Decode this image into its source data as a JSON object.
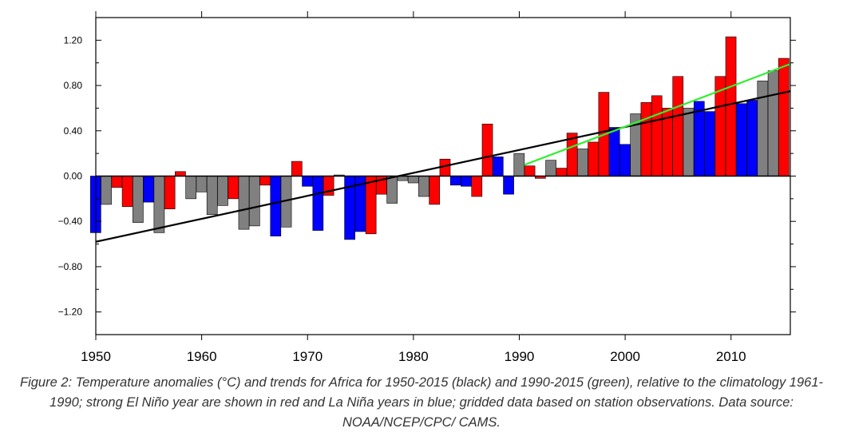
{
  "caption": "Figure 2: Temperature anomalies (°C) and trends for Africa for 1950-2015 (black) and 1990-2015 (green), relative to the climatology 1961-1990; strong El Niño year are shown in red and La Niña years in blue; gridded data based on station observations. Data source: NOAA/NCEP/CPC/ CAMS.",
  "colors": {
    "el_nino": "#ff0000",
    "la_nina": "#0000ff",
    "neutral": "#808080",
    "trend_1950_2015": "#000000",
    "trend_1990_2015": "#33ee33"
  },
  "chart_data": {
    "type": "bar",
    "title": "",
    "xlabel": "",
    "ylabel": "",
    "xlim": [
      1950,
      2015.6
    ],
    "ylim": [
      -1.4,
      1.4
    ],
    "y_ticks": [
      -1.2,
      -0.8,
      -0.4,
      0.0,
      0.4,
      0.8,
      1.2
    ],
    "y_tick_labels": [
      "−1.20",
      "−0.80",
      "−0.40",
      "0.00",
      "0.40",
      "0.80",
      "1.20"
    ],
    "x_ticks": [
      1950,
      1960,
      1970,
      1980,
      1990,
      2000,
      2010
    ],
    "x_tick_labels": [
      "1950",
      "1960",
      "1970",
      "1980",
      "1990",
      "2000",
      "2010"
    ],
    "grid": false,
    "legend": "none",
    "categories": [
      1950,
      1951,
      1952,
      1953,
      1954,
      1955,
      1956,
      1957,
      1958,
      1959,
      1960,
      1961,
      1962,
      1963,
      1964,
      1965,
      1966,
      1967,
      1968,
      1969,
      1970,
      1971,
      1972,
      1973,
      1974,
      1975,
      1976,
      1977,
      1978,
      1979,
      1980,
      1981,
      1982,
      1983,
      1984,
      1985,
      1986,
      1987,
      1988,
      1989,
      1990,
      1991,
      1992,
      1993,
      1994,
      1995,
      1996,
      1997,
      1998,
      1999,
      2000,
      2001,
      2002,
      2003,
      2004,
      2005,
      2006,
      2007,
      2008,
      2009,
      2010,
      2011,
      2012,
      2013,
      2014,
      2015
    ],
    "values": [
      -0.5,
      -0.25,
      -0.1,
      -0.27,
      -0.41,
      -0.23,
      -0.5,
      -0.29,
      0.04,
      -0.2,
      -0.14,
      -0.34,
      -0.26,
      -0.2,
      -0.47,
      -0.44,
      -0.08,
      -0.53,
      -0.45,
      0.13,
      -0.09,
      -0.48,
      -0.17,
      0.01,
      -0.56,
      -0.49,
      -0.51,
      -0.16,
      -0.24,
      -0.04,
      -0.06,
      -0.18,
      -0.25,
      0.15,
      -0.08,
      -0.09,
      -0.18,
      0.46,
      0.17,
      -0.16,
      0.2,
      0.09,
      -0.02,
      0.14,
      0.07,
      0.38,
      0.24,
      0.3,
      0.74,
      0.43,
      0.28,
      0.55,
      0.65,
      0.71,
      0.6,
      0.88,
      0.6,
      0.66,
      0.57,
      0.88,
      1.23,
      0.64,
      0.67,
      0.84,
      0.93,
      1.04
    ],
    "category_types": [
      "nina",
      "neutral",
      "nino",
      "nino",
      "neutral",
      "nina",
      "neutral",
      "nino",
      "nino",
      "neutral",
      "neutral",
      "neutral",
      "neutral",
      "nino",
      "neutral",
      "neutral",
      "nino",
      "nina",
      "neutral",
      "nino",
      "nina",
      "nina",
      "nino",
      "neutral",
      "nina",
      "nina",
      "nino",
      "nino",
      "neutral",
      "neutral",
      "neutral",
      "neutral",
      "nino",
      "nino",
      "nina",
      "nina",
      "nino",
      "nino",
      "nina",
      "nina",
      "neutral",
      "nino",
      "nino",
      "neutral",
      "nino",
      "nino",
      "neutral",
      "nino",
      "nino",
      "nina",
      "nina",
      "neutral",
      "nino",
      "nino",
      "nino",
      "nino",
      "neutral",
      "nina",
      "nina",
      "nino",
      "nino",
      "nina",
      "nina",
      "neutral",
      "neutral",
      "nino"
    ],
    "series": [
      {
        "type": "line",
        "x": [
          1950,
          2015.6
        ],
        "y": [
          -0.58,
          0.75
        ]
      },
      {
        "type": "line",
        "x": [
          1990.5,
          2015.6
        ],
        "y": [
          0.1,
          0.99
        ]
      }
    ]
  }
}
